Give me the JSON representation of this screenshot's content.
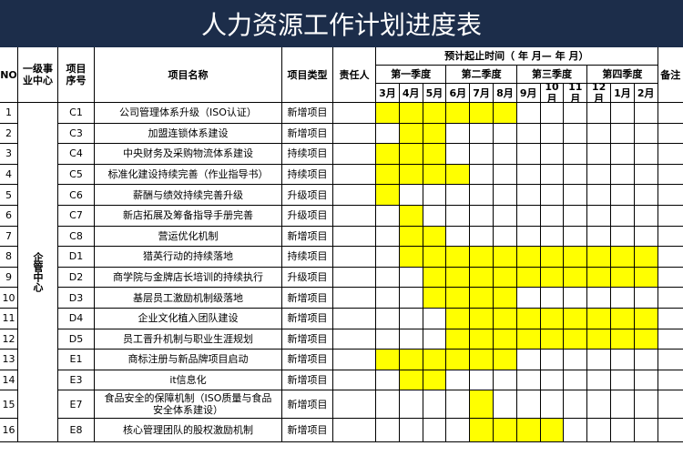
{
  "header": {
    "title": "人力资源工作计划进度表"
  },
  "table": {
    "columns": {
      "no": "NO",
      "center": "一级事业中心",
      "code": "项目序号",
      "name": "项目名称",
      "type": "项目类型",
      "owner": "责任人",
      "period": "预计起止时间（ 年 月— 年 月）",
      "remark": "备注"
    },
    "quarters": [
      "第一季度",
      "第二季度",
      "第三季度",
      "第四季度"
    ],
    "months": [
      "3月",
      "4月",
      "5月",
      "6月",
      "7月",
      "8月",
      "9月",
      "10月",
      "11月",
      "12月",
      "1月",
      "2月"
    ],
    "center": "企管中心",
    "rows": [
      {
        "no": "1",
        "code": "C1",
        "name": "公司管理体系升级（ISO认证）",
        "type": "新增项目",
        "from": "3月",
        "to": "8月"
      },
      {
        "no": "2",
        "code": "C3",
        "name": "加盟连锁体系建设",
        "type": "新增项目",
        "from": "4月",
        "to": "5月"
      },
      {
        "no": "3",
        "code": "C4",
        "name": "中央财务及采购物流体系建设",
        "type": "持续项目",
        "from": "3月",
        "to": "5月"
      },
      {
        "no": "4",
        "code": "C5",
        "name": "标准化建设持续完善（作业指导书）",
        "type": "持续项目",
        "from": "3月",
        "to": "6月"
      },
      {
        "no": "5",
        "code": "C6",
        "name": "薪酬与绩效持续完善升级",
        "type": "升级项目",
        "from": "3月",
        "to": "3月"
      },
      {
        "no": "6",
        "code": "C7",
        "name": "新店拓展及筹备指导手册完善",
        "type": "升级项目",
        "from": "4月",
        "to": "4月"
      },
      {
        "no": "7",
        "code": "C8",
        "name": "营运优化机制",
        "type": "新增项目",
        "from": "4月",
        "to": "5月"
      },
      {
        "no": "8",
        "code": "D1",
        "name": "猎英行动的持续落地",
        "type": "持续项目",
        "from": "4月",
        "to": "2月"
      },
      {
        "no": "9",
        "code": "D2",
        "name": "商学院与金牌店长培训的持续执行",
        "type": "升级项目",
        "from": "5月",
        "to": "2月"
      },
      {
        "no": "10",
        "code": "D3",
        "name": "基层员工激励机制级落地",
        "type": "新增项目",
        "from": "5月",
        "to": "8月"
      },
      {
        "no": "11",
        "code": "D4",
        "name": "企业文化植入团队建设",
        "type": "新增项目",
        "from": "6月",
        "to": "2月"
      },
      {
        "no": "12",
        "code": "D5",
        "name": "员工晋升机制与职业生涯规划",
        "type": "新增项目",
        "from": "6月",
        "to": "2月"
      },
      {
        "no": "13",
        "code": "E1",
        "name": "商标注册与新品牌项目启动",
        "type": "新增项目",
        "from": "3月",
        "to": "8月"
      },
      {
        "no": "14",
        "code": "E3",
        "name": "it信息化",
        "type": "新增项目",
        "from": "4月",
        "to": "5月"
      },
      {
        "no": "15",
        "code": "E7",
        "name": "食品安全的保障机制（ISO质量与食品安全体系建设）",
        "type": "新增项目",
        "from": "7月",
        "to": "7月"
      },
      {
        "no": "16",
        "code": "E8",
        "name": "核心管理团队的股权激励机制",
        "type": "新增项目",
        "from": "7月",
        "to": "10月"
      }
    ]
  }
}
